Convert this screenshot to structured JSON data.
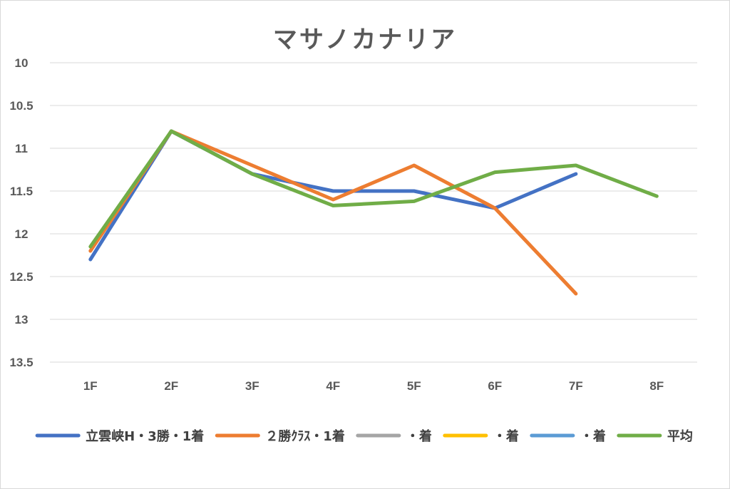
{
  "chart_data": {
    "type": "line",
    "title": "マサノカナリア",
    "categories": [
      "1F",
      "2F",
      "3F",
      "4F",
      "5F",
      "6F",
      "7F",
      "8F"
    ],
    "y_ticks": [
      "10",
      "10.5",
      "11",
      "11.5",
      "12",
      "12.5",
      "13",
      "13.5"
    ],
    "ylim": [
      10,
      13.5
    ],
    "y_reversed": true,
    "grid": true,
    "legend_position": "bottom",
    "series": [
      {
        "name": "立雲峡H・3勝・1着",
        "color": "#4472c4",
        "values": [
          12.3,
          10.8,
          11.3,
          11.5,
          11.5,
          11.7,
          11.3,
          null
        ]
      },
      {
        "name": "２勝ｸﾗｽ・1着",
        "color": "#ed7d31",
        "values": [
          12.2,
          10.8,
          11.2,
          11.6,
          11.2,
          11.7,
          12.7,
          null
        ]
      },
      {
        "name": "・着",
        "color": "#a5a5a5",
        "values": [
          null,
          null,
          null,
          null,
          null,
          null,
          null,
          null
        ]
      },
      {
        "name": "・着",
        "color": "#ffc000",
        "values": [
          null,
          null,
          null,
          null,
          null,
          null,
          null,
          null
        ]
      },
      {
        "name": "・着",
        "color": "#5b9bd5",
        "values": [
          null,
          null,
          null,
          null,
          null,
          null,
          null,
          null
        ]
      },
      {
        "name": "平均",
        "color": "#70ad47",
        "values": [
          12.15,
          10.8,
          11.3,
          11.67,
          11.62,
          11.28,
          11.2,
          11.56
        ]
      }
    ]
  }
}
